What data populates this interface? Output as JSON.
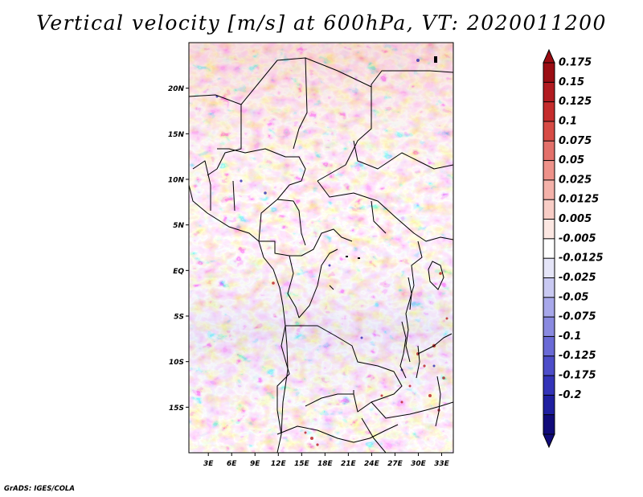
{
  "chart_data": {
    "type": "heatmap",
    "title": "Vertical velocity [m/s] at 600hPa, VT: 2020011200",
    "variable": "Vertical velocity",
    "units": "m/s",
    "level": "600hPa",
    "valid_time": "2020011200",
    "x_ticks": [
      "3E",
      "6E",
      "9E",
      "12E",
      "15E",
      "18E",
      "21E",
      "24E",
      "27E",
      "30E",
      "33E"
    ],
    "x_tick_values": [
      3,
      6,
      9,
      12,
      15,
      18,
      21,
      24,
      27,
      30,
      33
    ],
    "y_ticks": [
      "20N",
      "15N",
      "10N",
      "5N",
      "EQ",
      "5S",
      "10S",
      "15S"
    ],
    "y_tick_values": [
      20,
      15,
      10,
      5,
      0,
      -5,
      -10,
      -15
    ],
    "xlim": [
      0.5,
      34.5
    ],
    "ylim": [
      -20,
      25
    ],
    "grid": false,
    "colorbar": {
      "placement": "right",
      "levels": [
        "0.175",
        "0.15",
        "0.125",
        "0.1",
        "0.075",
        "0.05",
        "0.025",
        "0.0125",
        "0.005",
        "-0.005",
        "-0.0125",
        "-0.025",
        "-0.05",
        "-0.075",
        "-0.1",
        "-0.125",
        "-0.175",
        "-0.2"
      ],
      "colors": [
        "#9b0d13",
        "#b11b20",
        "#c52c2c",
        "#d74b45",
        "#e3706a",
        "#ee928a",
        "#f4b2aa",
        "#f8cdc6",
        "#fce7e2",
        "#ffffff",
        "#e5e5f8",
        "#c9c9f2",
        "#a8a8ea",
        "#8a8ae0",
        "#6a6ad6",
        "#4d4dc9",
        "#3333b8",
        "#1f1fa0",
        "#110b7a"
      ]
    }
  },
  "footer": "GrADS: IGES/COLA"
}
